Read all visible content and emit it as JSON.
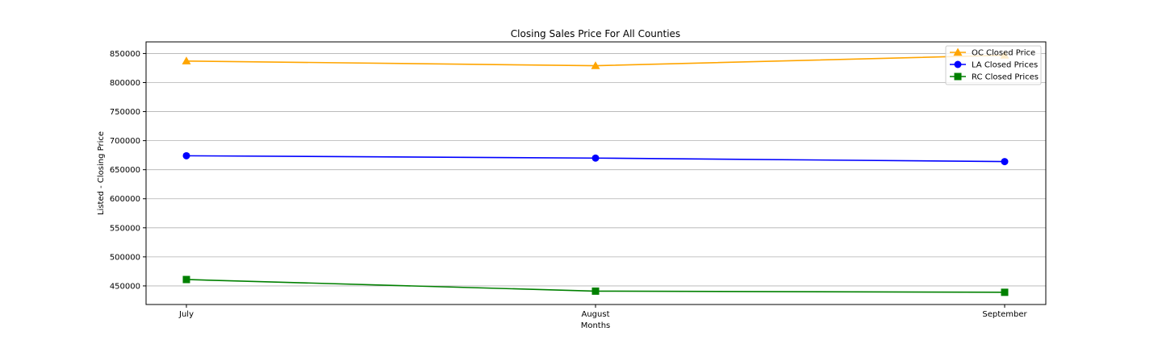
{
  "chart_data": {
    "type": "line",
    "title": "Closing Sales Price For All Counties",
    "xlabel": "Months",
    "ylabel": "Listed - Closing Price",
    "categories": [
      "July",
      "August",
      "September"
    ],
    "ylim": [
      418000,
      870000
    ],
    "yticks": [
      450000,
      500000,
      550000,
      600000,
      650000,
      700000,
      750000,
      800000,
      850000
    ],
    "grid": "horizontal",
    "legend_position": "top-right",
    "series": [
      {
        "name": "OC Closed Price",
        "values": [
          837000,
          829000,
          847000
        ],
        "color": "#ffa500",
        "marker": "triangle"
      },
      {
        "name": "LA Closed Prices",
        "values": [
          674000,
          670000,
          664000
        ],
        "color": "#0000ff",
        "marker": "circle"
      },
      {
        "name": "RC Closed Prices",
        "values": [
          461000,
          441000,
          439000
        ],
        "color": "#008000",
        "marker": "square"
      }
    ]
  }
}
